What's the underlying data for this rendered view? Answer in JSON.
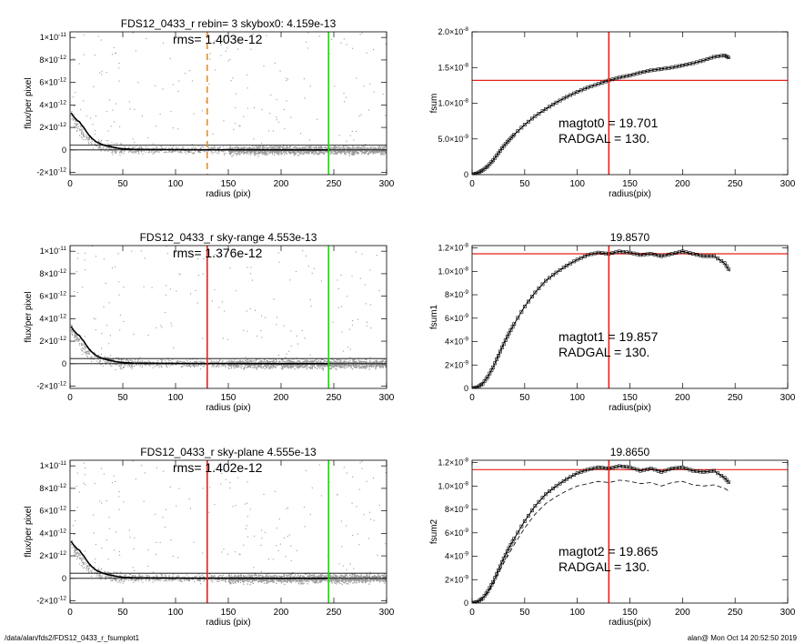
{
  "colors": {
    "scatter": "#999999",
    "profile": "#000000",
    "red": "#e8211b",
    "green": "#2ad11e",
    "orange": "#f08c1e"
  },
  "footer": {
    "left": "/data/alan/fds2/FDS12_0433_r_fsumplot1",
    "right": "alan@  Mon Oct 14 20:52:50 2019"
  },
  "chart_data": [
    {
      "type": "scatter",
      "title": "FDS12_0433_r rebin= 3    skybox0:  4.159e-13",
      "annotations": [
        "rms= 1.403e-12"
      ],
      "xlabel": "radius (pix)",
      "ylabel": "flux/per pixel",
      "xlim": [
        0,
        300
      ],
      "ylim": [
        -2.2e-12,
        1.05e-11
      ],
      "xticks": [
        0,
        50,
        100,
        150,
        200,
        250,
        300
      ],
      "yticks": [
        -2e-12,
        0,
        2e-12,
        4e-12,
        6e-12,
        8e-12,
        1e-11
      ],
      "ytick_labels": [
        [
          "-2×10",
          "-12"
        ],
        [
          "0",
          ""
        ],
        [
          "2×10",
          "-12"
        ],
        [
          "4×10",
          "-12"
        ],
        [
          "6×10",
          "-12"
        ],
        [
          "8×10",
          "-12"
        ],
        [
          "1×10",
          "-11"
        ]
      ],
      "series": [
        {
          "name": "",
          "x": [
            1,
            3,
            5,
            7,
            9,
            11,
            13,
            15,
            18,
            21,
            25,
            30,
            35,
            40,
            45,
            50,
            60,
            80,
            100,
            130,
            160,
            200,
            245
          ],
          "y": [
            3.3e-12,
            3e-12,
            2.8e-12,
            2.6e-12,
            2.5e-12,
            2.2e-12,
            2e-12,
            1.7e-12,
            1.3e-12,
            1e-12,
            7e-13,
            5e-13,
            3.5e-13,
            2.5e-13,
            1.5e-13,
            1e-13,
            5e-14,
            3e-14,
            2e-14,
            1e-14,
            1e-14,
            0,
            0
          ]
        }
      ],
      "hlines": [
        4.159e-13,
        0
      ],
      "vlines": [
        {
          "x": 130,
          "color": "orange",
          "dashed": true
        },
        {
          "x": 245,
          "color": "green",
          "dashed": false
        }
      ]
    },
    {
      "type": "line",
      "title": "",
      "annotations": [
        "magtot0 =  19.701",
        "RADGAL =     130."
      ],
      "xlabel": "radius(pix)",
      "ylabel": "fsum",
      "xlim": [
        0,
        300
      ],
      "ylim": [
        0,
        2e-08
      ],
      "xticks": [
        0,
        50,
        100,
        150,
        200,
        250,
        300
      ],
      "yticks": [
        0,
        5e-09,
        1e-08,
        1.5e-08,
        2e-08
      ],
      "ytick_labels": [
        [
          "0",
          ""
        ],
        [
          "5.0×10",
          "-9"
        ],
        [
          "1.0×10",
          "-8"
        ],
        [
          "1.5×10",
          "-8"
        ],
        [
          "2.0×10",
          "-8"
        ]
      ],
      "series": [
        {
          "name": "",
          "x": [
            0,
            5,
            10,
            15,
            20,
            25,
            30,
            35,
            40,
            50,
            60,
            70,
            80,
            90,
            100,
            110,
            120,
            130,
            140,
            150,
            160,
            170,
            180,
            190,
            200,
            210,
            220,
            230,
            240,
            245
          ],
          "y": [
            0,
            2e-10,
            6e-10,
            1.2e-09,
            2e-09,
            3e-09,
            4e-09,
            4.8e-09,
            5.6e-09,
            7e-09,
            8.2e-09,
            9.2e-09,
            1.01e-08,
            1.09e-08,
            1.16e-08,
            1.22e-08,
            1.27e-08,
            1.32e-08,
            1.36e-08,
            1.39e-08,
            1.43e-08,
            1.46e-08,
            1.48e-08,
            1.5e-08,
            1.53e-08,
            1.56e-08,
            1.6e-08,
            1.65e-08,
            1.67e-08,
            1.63e-08
          ]
        }
      ],
      "hlines": [
        1.32e-08
      ],
      "vlines": [
        {
          "x": 130,
          "color": "red",
          "dashed": false
        }
      ]
    },
    {
      "type": "scatter",
      "title": "FDS12_0433_r sky-range  4.553e-13",
      "annotations": [
        "rms= 1.376e-12"
      ],
      "xlabel": "radius (pix)",
      "ylabel": "flux/per pixel",
      "xlim": [
        0,
        300
      ],
      "ylim": [
        -2.2e-12,
        1.05e-11
      ],
      "xticks": [
        0,
        50,
        100,
        150,
        200,
        250,
        300
      ],
      "yticks": [
        -2e-12,
        0,
        2e-12,
        4e-12,
        6e-12,
        8e-12,
        1e-11
      ],
      "ytick_labels": [
        [
          "-2×10",
          "-12"
        ],
        [
          "0",
          ""
        ],
        [
          "2×10",
          "-12"
        ],
        [
          "4×10",
          "-12"
        ],
        [
          "6×10",
          "-12"
        ],
        [
          "8×10",
          "-12"
        ],
        [
          "1×10",
          "-11"
        ]
      ],
      "series": [
        {
          "name": "",
          "x": [
            1,
            3,
            5,
            7,
            9,
            11,
            13,
            15,
            18,
            21,
            25,
            30,
            35,
            40,
            45,
            50,
            60,
            80,
            100,
            130,
            160,
            200,
            245
          ],
          "y": [
            3.3e-12,
            3e-12,
            2.8e-12,
            2.6e-12,
            2.5e-12,
            2.2e-12,
            2e-12,
            1.7e-12,
            1.3e-12,
            1e-12,
            7e-13,
            5e-13,
            3.5e-13,
            2.5e-13,
            1.5e-13,
            1e-13,
            5e-14,
            3e-14,
            2e-14,
            1e-14,
            1e-14,
            0,
            0
          ]
        }
      ],
      "hlines": [
        4.553e-13,
        0
      ],
      "vlines": [
        {
          "x": 130,
          "color": "red",
          "dashed": false
        },
        {
          "x": 245,
          "color": "green",
          "dashed": false
        }
      ]
    },
    {
      "type": "line",
      "title": "19.8570",
      "annotations": [
        "magtot1 =  19.857",
        "RADGAL =     130."
      ],
      "xlabel": "radius(pix)",
      "ylabel": "fsum1",
      "xlim": [
        0,
        300
      ],
      "ylim": [
        0,
        1.22e-08
      ],
      "xticks": [
        0,
        50,
        100,
        150,
        200,
        250,
        300
      ],
      "yticks": [
        0,
        2e-09,
        4e-09,
        6e-09,
        8e-09,
        1e-08,
        1.2e-08
      ],
      "ytick_labels": [
        [
          "0",
          ""
        ],
        [
          "2×10",
          "-9"
        ],
        [
          "4×10",
          "-9"
        ],
        [
          "6×10",
          "-9"
        ],
        [
          "8×10",
          "-9"
        ],
        [
          "1.0×10",
          "-8"
        ],
        [
          "1.2×10",
          "-8"
        ]
      ],
      "series": [
        {
          "name": "",
          "x": [
            0,
            5,
            10,
            15,
            20,
            25,
            30,
            35,
            40,
            50,
            60,
            70,
            80,
            90,
            100,
            110,
            120,
            130,
            140,
            150,
            160,
            170,
            180,
            190,
            200,
            210,
            220,
            230,
            240,
            245
          ],
          "y": [
            0,
            1e-10,
            4e-10,
            1e-09,
            1.8e-09,
            2.8e-09,
            3.8e-09,
            4.7e-09,
            5.5e-09,
            7e-09,
            8.2e-09,
            9.2e-09,
            9.9e-09,
            1.05e-08,
            1.1e-08,
            1.14e-08,
            1.16e-08,
            1.15e-08,
            1.17e-08,
            1.16e-08,
            1.14e-08,
            1.15e-08,
            1.13e-08,
            1.15e-08,
            1.17e-08,
            1.15e-08,
            1.13e-08,
            1.13e-08,
            1.07e-08,
            1e-08
          ]
        }
      ],
      "hlines": [
        1.15e-08
      ],
      "vlines": [
        {
          "x": 130,
          "color": "red",
          "dashed": false
        }
      ]
    },
    {
      "type": "scatter",
      "title": "FDS12_0433_r sky-plane  4.555e-13",
      "annotations": [
        "rms= 1.402e-12"
      ],
      "xlabel": "radius (pix)",
      "ylabel": "flux/per pixel",
      "xlim": [
        0,
        300
      ],
      "ylim": [
        -2.2e-12,
        1.05e-11
      ],
      "xticks": [
        0,
        50,
        100,
        150,
        200,
        250,
        300
      ],
      "yticks": [
        -2e-12,
        0,
        2e-12,
        4e-12,
        6e-12,
        8e-12,
        1e-11
      ],
      "ytick_labels": [
        [
          "-2×10",
          "-12"
        ],
        [
          "0",
          ""
        ],
        [
          "2×10",
          "-12"
        ],
        [
          "4×10",
          "-12"
        ],
        [
          "6×10",
          "-12"
        ],
        [
          "8×10",
          "-12"
        ],
        [
          "1×10",
          "-11"
        ]
      ],
      "series": [
        {
          "name": "",
          "x": [
            1,
            3,
            5,
            7,
            9,
            11,
            13,
            15,
            18,
            21,
            25,
            30,
            35,
            40,
            45,
            50,
            60,
            80,
            100,
            130,
            160,
            200,
            245
          ],
          "y": [
            3.3e-12,
            3e-12,
            2.8e-12,
            2.6e-12,
            2.5e-12,
            2.2e-12,
            2e-12,
            1.7e-12,
            1.3e-12,
            1e-12,
            7e-13,
            5e-13,
            3.5e-13,
            2.5e-13,
            1.5e-13,
            1e-13,
            5e-14,
            3e-14,
            2e-14,
            1e-14,
            1e-14,
            0,
            0
          ]
        }
      ],
      "hlines": [
        4.555e-13,
        0
      ],
      "vlines": [
        {
          "x": 130,
          "color": "red",
          "dashed": false
        },
        {
          "x": 245,
          "color": "green",
          "dashed": false
        }
      ]
    },
    {
      "type": "line",
      "title": "19.8650",
      "annotations": [
        "magtot2 =  19.865",
        "RADGAL =     130."
      ],
      "xlabel": "radius(pix)",
      "ylabel": "fsum2",
      "xlim": [
        0,
        300
      ],
      "ylim": [
        0,
        1.22e-08
      ],
      "xticks": [
        0,
        50,
        100,
        150,
        200,
        250,
        300
      ],
      "yticks": [
        0,
        2e-09,
        4e-09,
        6e-09,
        8e-09,
        1e-08,
        1.2e-08
      ],
      "ytick_labels": [
        [
          "0",
          ""
        ],
        [
          "2×10",
          "-9"
        ],
        [
          "4×10",
          "-9"
        ],
        [
          "6×10",
          "-9"
        ],
        [
          "8×10",
          "-9"
        ],
        [
          "1.0×10",
          "-8"
        ],
        [
          "1.2×10",
          "-8"
        ]
      ],
      "series": [
        {
          "name": "",
          "x": [
            0,
            5,
            10,
            15,
            20,
            25,
            30,
            35,
            40,
            50,
            60,
            70,
            80,
            90,
            100,
            110,
            120,
            130,
            140,
            150,
            160,
            170,
            180,
            190,
            200,
            210,
            220,
            230,
            240,
            245
          ],
          "y": [
            0,
            1e-10,
            4e-10,
            1e-09,
            1.8e-09,
            2.8e-09,
            3.8e-09,
            4.7e-09,
            5.5e-09,
            7e-09,
            8.3e-09,
            9.3e-09,
            1e-08,
            1.06e-08,
            1.11e-08,
            1.14e-08,
            1.16e-08,
            1.15e-08,
            1.17e-08,
            1.16e-08,
            1.13e-08,
            1.15e-08,
            1.12e-08,
            1.15e-08,
            1.16e-08,
            1.13e-08,
            1.12e-08,
            1.13e-08,
            1.07e-08,
            1.02e-08
          ]
        },
        {
          "name": "",
          "x": [
            0,
            5,
            10,
            15,
            20,
            25,
            30,
            35,
            40,
            50,
            60,
            70,
            80,
            90,
            100,
            110,
            120,
            130,
            140,
            150,
            160,
            170,
            180,
            190,
            200,
            210,
            220,
            230,
            240,
            245
          ],
          "y": [
            0,
            1e-10,
            4e-10,
            9e-10,
            1.6e-09,
            2.5e-09,
            3.4e-09,
            4.2e-09,
            5e-09,
            6.4e-09,
            7.6e-09,
            8.5e-09,
            9.1e-09,
            9.6e-09,
            1e-08,
            1.02e-08,
            1.04e-08,
            1.03e-08,
            1.05e-08,
            1.04e-08,
            1.02e-08,
            1.03e-08,
            1e-08,
            1.03e-08,
            1.04e-08,
            1.01e-08,
            1e-08,
            1.01e-08,
            9.8e-09,
            9.5e-09
          ]
        }
      ],
      "hlines": [
        1.14e-08
      ],
      "vlines": [
        {
          "x": 130,
          "color": "red",
          "dashed": false
        }
      ]
    }
  ]
}
